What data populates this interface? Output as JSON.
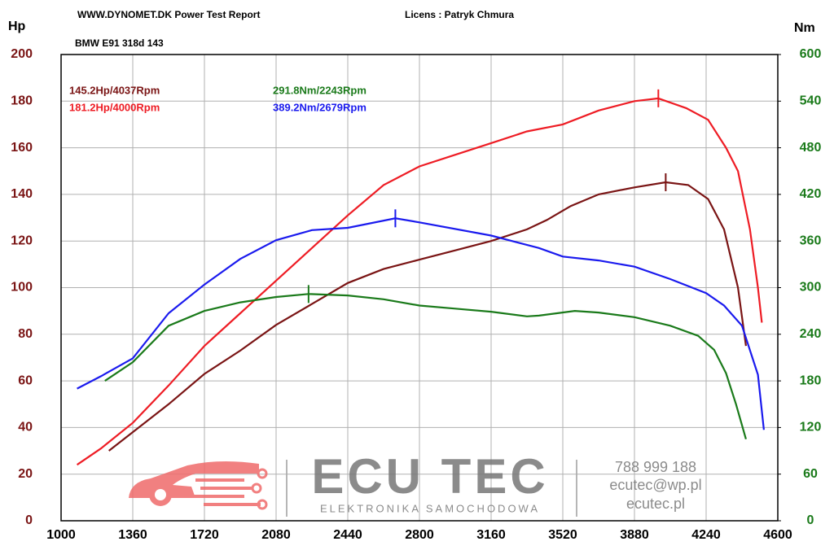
{
  "chart_data": {
    "type": "line",
    "title": "WWW.DYNOMET.DK  Power Test Report",
    "license": "Licens :  Patryk Chmura",
    "subtitle": "BMW E91 318d 143",
    "ylabel": "Hp",
    "y2label": "Nm",
    "xlim": [
      1000,
      4600
    ],
    "xticks": [
      1000,
      1360,
      1720,
      2080,
      2440,
      2800,
      3160,
      3520,
      3880,
      4240,
      4600
    ],
    "ylim": [
      0,
      200
    ],
    "yticks": [
      0,
      20,
      40,
      60,
      80,
      100,
      120,
      140,
      160,
      180,
      200
    ],
    "y2lim": [
      0,
      600
    ],
    "y2ticks": [
      0,
      60,
      120,
      180,
      240,
      300,
      360,
      420,
      480,
      540,
      600
    ],
    "grid": true,
    "series": [
      {
        "color": "#7a1414",
        "annotation": "145.2Hp/4037Rpm",
        "x": [
          1240,
          1360,
          1540,
          1720,
          1900,
          2080,
          2260,
          2440,
          2620,
          2800,
          2980,
          3160,
          3340,
          3440,
          3560,
          3700,
          3880,
          4037,
          4150,
          4250,
          4330,
          4400,
          4440
        ],
        "values": [
          30,
          38,
          50,
          63,
          73,
          84,
          93,
          102,
          108,
          112,
          116,
          120,
          125,
          129,
          135,
          140,
          143,
          145.2,
          144,
          138,
          125,
          100,
          75
        ]
      },
      {
        "color": "#ee1c24",
        "annotation": "181.2Hp/4000Rpm",
        "x": [
          1080,
          1200,
          1360,
          1540,
          1720,
          1900,
          2080,
          2260,
          2440,
          2620,
          2800,
          2980,
          3160,
          3340,
          3520,
          3700,
          3880,
          4000,
          4140,
          4250,
          4340,
          4400,
          4460,
          4500,
          4520
        ],
        "values": [
          24,
          31,
          42,
          58,
          75,
          89,
          103,
          117,
          131,
          144,
          152,
          157,
          162,
          167,
          170,
          176,
          180,
          181.2,
          177,
          172,
          160,
          150,
          125,
          100,
          85
        ]
      },
      {
        "color": "#1a7a1a",
        "annotation": "291.8Nm/2243Rpm",
        "axis": "y2",
        "x": [
          1220,
          1360,
          1540,
          1720,
          1900,
          2080,
          2243,
          2440,
          2620,
          2800,
          2980,
          3160,
          3340,
          3400,
          3580,
          3700,
          3880,
          4060,
          4200,
          4280,
          4340,
          4390,
          4440
        ],
        "values": [
          180,
          204,
          251,
          270,
          281,
          288,
          291.8,
          290,
          285,
          277,
          273,
          269,
          263,
          264,
          270,
          268,
          262,
          251,
          238,
          220,
          190,
          150,
          105
        ]
      },
      {
        "color": "#1a1aee",
        "annotation": "389.2Nm/2679Rpm",
        "axis": "y2",
        "x": [
          1080,
          1200,
          1360,
          1540,
          1720,
          1900,
          2080,
          2260,
          2440,
          2679,
          2800,
          3160,
          3400,
          3520,
          3700,
          3880,
          4060,
          4240,
          4330,
          4420,
          4500,
          4530
        ],
        "values": [
          170,
          186,
          209,
          267,
          304,
          337,
          361,
          374,
          377,
          389.2,
          384,
          367,
          351,
          340,
          335,
          327,
          311,
          293,
          277,
          251,
          188,
          117
        ]
      }
    ]
  },
  "watermark": {
    "brand": "ECU TEC",
    "tagline": "ELEKTRONIKA SAMOCHODOWA",
    "phone": "788 999 188",
    "email": "ecutec@wp.pl",
    "site": "ecutec.pl"
  }
}
